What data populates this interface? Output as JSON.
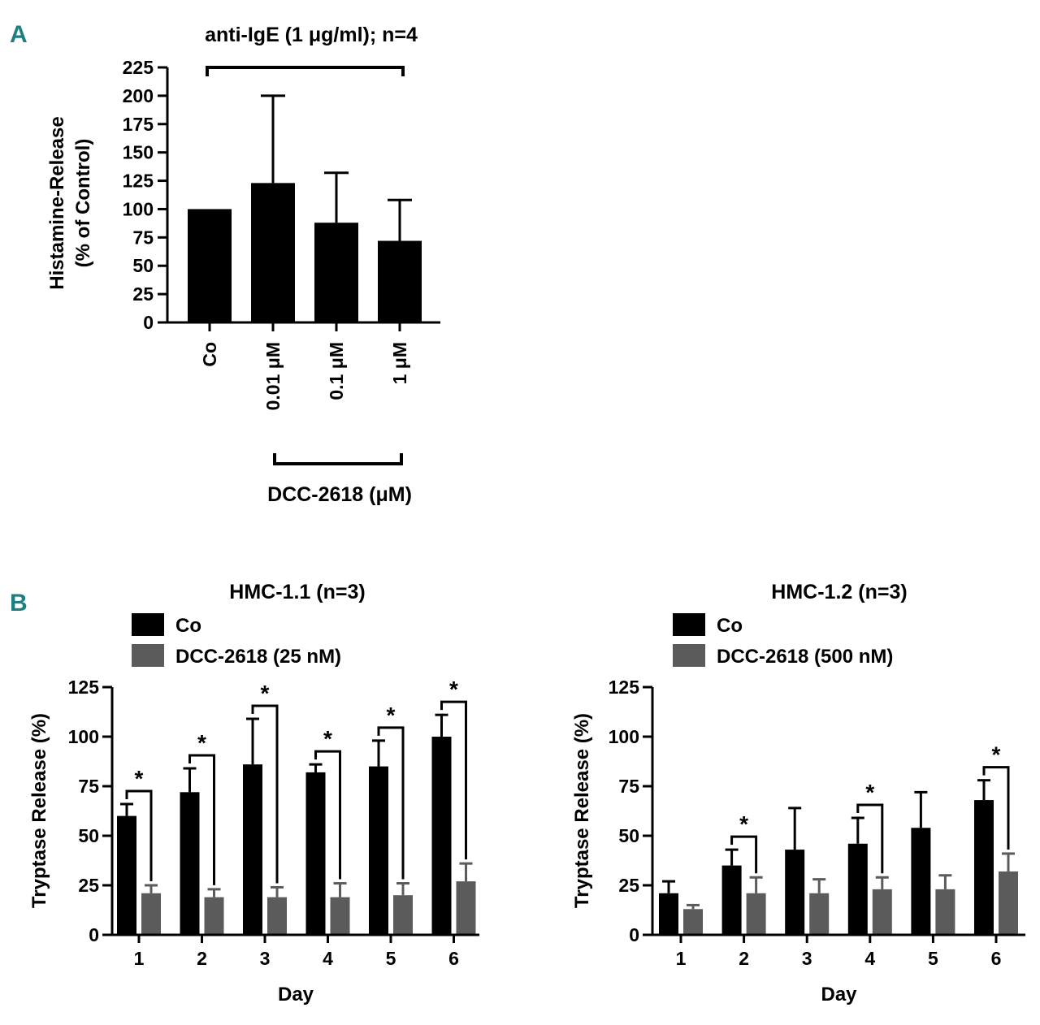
{
  "panel_labels": [
    "A",
    "B"
  ],
  "chart_data": [
    {
      "type": "bar",
      "panel": "A",
      "title": "anti-IgE (1 μg/ml); n=4",
      "categories": [
        "Co",
        "0.01 μM",
        "0.1 μM",
        "1 μM"
      ],
      "values": [
        100,
        123,
        88,
        72
      ],
      "errors": [
        0,
        77,
        44,
        36
      ],
      "ylabel": [
        "Histamine-Release",
        "(% of Control)"
      ],
      "yticks": [
        0,
        25,
        50,
        75,
        100,
        125,
        150,
        175,
        200,
        225
      ],
      "ylim": [
        0,
        225
      ],
      "group_label": "DCC-2618 (μM)",
      "bar_color": "#000000"
    },
    {
      "type": "bar",
      "panel": "B",
      "title": "HMC-1.1 (n=3)",
      "categories": [
        "1",
        "2",
        "3",
        "4",
        "5",
        "6"
      ],
      "series": [
        {
          "name": "Co",
          "color": "#000000",
          "values": [
            60,
            72,
            86,
            82,
            85,
            100
          ],
          "errors": [
            6,
            12,
            23,
            4,
            13,
            11
          ]
        },
        {
          "name": "DCC-2618 (25 nM)",
          "color": "#5b5b5b",
          "values": [
            21,
            19,
            19,
            19,
            20,
            27
          ],
          "errors": [
            4,
            4,
            5,
            7,
            6,
            9
          ]
        }
      ],
      "significance": [
        "*",
        "*",
        "*",
        "*",
        "*",
        "*"
      ],
      "xlabel": "Day",
      "ylabel": "Tryptase Release (%)",
      "yticks": [
        0,
        25,
        50,
        75,
        100,
        125
      ],
      "ylim": [
        0,
        125
      ]
    },
    {
      "type": "bar",
      "panel": "B",
      "title": "HMC-1.2 (n=3)",
      "categories": [
        "1",
        "2",
        "3",
        "4",
        "5",
        "6"
      ],
      "series": [
        {
          "name": "Co",
          "color": "#000000",
          "values": [
            21,
            35,
            43,
            46,
            54,
            68
          ],
          "errors": [
            6,
            8,
            21,
            13,
            18,
            10
          ]
        },
        {
          "name": "DCC-2618 (500 nM)",
          "color": "#5b5b5b",
          "values": [
            13,
            21,
            21,
            23,
            23,
            32
          ],
          "errors": [
            2,
            8,
            7,
            6,
            7,
            9
          ]
        }
      ],
      "significance": [
        "",
        "*",
        "",
        "*",
        "",
        "*"
      ],
      "xlabel": "Day",
      "ylabel": "Tryptase Release (%)",
      "yticks": [
        0,
        25,
        50,
        75,
        100,
        125
      ],
      "ylim": [
        0,
        125
      ]
    }
  ]
}
